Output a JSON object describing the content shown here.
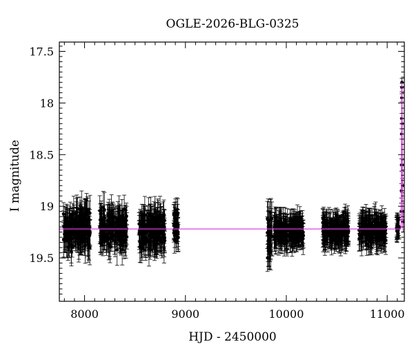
{
  "chart_data": {
    "type": "scatter",
    "title": "OGLE-2026-BLG-0325",
    "xlabel": "HJD - 2450000",
    "ylabel": "I magnitude",
    "xlim": [
      7750,
      11170
    ],
    "ylim": [
      19.92,
      17.41
    ],
    "y_inverted": true,
    "x_ticks": [
      8000,
      9000,
      10000,
      11000
    ],
    "x_tick_labels": [
      "8000",
      "9000",
      "10000",
      "11000"
    ],
    "y_ticks": [
      17.5,
      18,
      18.5,
      19,
      19.5
    ],
    "y_tick_labels": [
      "17.5",
      "18",
      "18.5",
      "19",
      "19.5"
    ],
    "baseline_mag": 19.22,
    "model_color": "#e040e0",
    "point_color": "#000000",
    "seasons": [
      {
        "start": 7790,
        "end": 8060,
        "mean": 19.22,
        "scatter": 0.16,
        "err": 0.14
      },
      {
        "start": 8150,
        "end": 8420,
        "mean": 19.22,
        "scatter": 0.15,
        "err": 0.13
      },
      {
        "start": 8540,
        "end": 8800,
        "mean": 19.23,
        "scatter": 0.15,
        "err": 0.14
      },
      {
        "start": 8880,
        "end": 8930,
        "mean": 19.18,
        "scatter": 0.12,
        "err": 0.12
      },
      {
        "start": 9810,
        "end": 9860,
        "mean": 19.28,
        "scatter": 0.22,
        "err": 0.16
      },
      {
        "start": 9880,
        "end": 10170,
        "mean": 19.24,
        "scatter": 0.09,
        "err": 0.12
      },
      {
        "start": 10360,
        "end": 10620,
        "mean": 19.24,
        "scatter": 0.09,
        "err": 0.12
      },
      {
        "start": 10720,
        "end": 10990,
        "mean": 19.24,
        "scatter": 0.1,
        "err": 0.12
      },
      {
        "start": 11090,
        "end": 11120,
        "mean": 19.2,
        "scatter": 0.05,
        "err": 0.1
      }
    ],
    "event_points": [
      {
        "x": 11138,
        "y": 19.05,
        "err": 0.08
      },
      {
        "x": 11140,
        "y": 18.85,
        "err": 0.07
      },
      {
        "x": 11141,
        "y": 18.6,
        "err": 0.06
      },
      {
        "x": 11142,
        "y": 18.3,
        "err": 0.05
      },
      {
        "x": 11143,
        "y": 18.15,
        "err": 0.05
      },
      {
        "x": 11144,
        "y": 17.95,
        "err": 0.04
      },
      {
        "x": 11145,
        "y": 17.85,
        "err": 0.04
      },
      {
        "x": 11146,
        "y": 17.8,
        "err": 0.04
      },
      {
        "x": 11148,
        "y": 18.2,
        "err": 0.05
      },
      {
        "x": 11150,
        "y": 18.6,
        "err": 0.06
      },
      {
        "x": 11152,
        "y": 18.8,
        "err": 0.07
      },
      {
        "x": 11155,
        "y": 19.05,
        "err": 0.08
      },
      {
        "x": 11158,
        "y": 19.15,
        "err": 0.1
      }
    ]
  }
}
